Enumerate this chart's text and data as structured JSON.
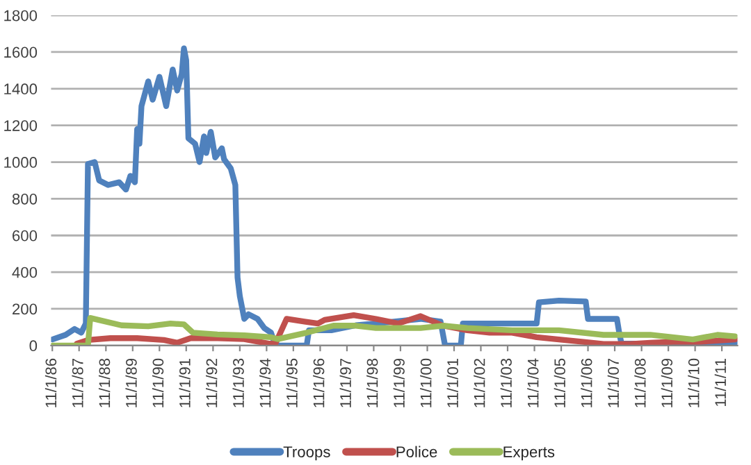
{
  "chart_data": {
    "type": "line",
    "series": [
      {
        "name": "Troops",
        "color": "#4f81bd",
        "x": [
          "1986-11",
          "1987-05",
          "1987-09",
          "1987-12",
          "1988-02",
          "1988-03",
          "1988-06",
          "1988-08",
          "1988-12",
          "1989-05",
          "1989-08",
          "1989-10",
          "1989-12",
          "1990-01",
          "1990-02",
          "1990-03",
          "1990-06",
          "1990-08",
          "1990-11",
          "1991-02",
          "1991-05",
          "1991-07",
          "1991-09",
          "1991-10",
          "1991-11",
          "1991-12",
          "1992-03",
          "1992-05",
          "1992-07",
          "1992-08",
          "1992-10",
          "1992-12",
          "1993-03",
          "1993-04",
          "1993-07",
          "1993-09",
          "1993-10",
          "1993-11",
          "1994-01",
          "1994-03",
          "1994-07",
          "1994-10",
          "1995-01",
          "1995-03",
          "1996-05",
          "1996-06",
          "1997-04",
          "1998-03",
          "1998-12",
          "2000-08",
          "2001-05",
          "2001-07",
          "2002-02",
          "2002-03",
          "2004-12",
          "2005-01",
          "2005-10",
          "2006-10",
          "2006-11",
          "2007-12",
          "2008-01",
          "2008-02",
          "2010-01",
          "2012-05"
        ],
        "values": [
          33,
          58,
          90,
          70,
          120,
          990,
          1000,
          900,
          875,
          890,
          850,
          925,
          890,
          1180,
          1100,
          1305,
          1440,
          1340,
          1465,
          1305,
          1505,
          1390,
          1480,
          1620,
          1555,
          1130,
          1100,
          1000,
          1140,
          1050,
          1165,
          1025,
          1075,
          1015,
          965,
          875,
          370,
          270,
          145,
          170,
          145,
          95,
          70,
          0,
          0,
          83,
          83,
          110,
          120,
          145,
          130,
          0,
          0,
          120,
          120,
          235,
          245,
          240,
          145,
          145,
          70,
          10,
          10,
          15
        ]
      },
      {
        "name": "Police",
        "color": "#c0504d",
        "x": [
          "1987-10",
          "1988-03",
          "1989-01",
          "1990-01",
          "1991-01",
          "1991-07",
          "1992-01",
          "1993-01",
          "1994-01",
          "1994-12",
          "1995-03",
          "1995-08",
          "1996-04",
          "1996-10",
          "1997-01",
          "1998-02",
          "1998-12",
          "1999-10",
          "2000-08",
          "2001-06",
          "2002-05",
          "2003-03",
          "2004-01",
          "2004-12",
          "2005-10",
          "2006-09",
          "2007-06",
          "2008-06",
          "2009-03",
          "2010-01",
          "2011-01",
          "2012-05"
        ],
        "values": [
          10,
          30,
          40,
          40,
          30,
          15,
          40,
          40,
          35,
          10,
          10,
          145,
          130,
          120,
          140,
          165,
          145,
          120,
          160,
          108,
          83,
          70,
          70,
          45,
          33,
          20,
          8,
          8,
          15,
          20,
          20,
          33
        ]
      },
      {
        "name": "Experts",
        "color": "#9bbb59",
        "x": [
          "1986-11",
          "1988-03",
          "1988-04",
          "1989-06",
          "1990-06",
          "1991-04",
          "1991-10",
          "1992-02",
          "1993-01",
          "1994-01",
          "1995-01",
          "1995-04",
          "1996-05",
          "1997-05",
          "1998-03",
          "1998-12",
          "2000-08",
          "2001-06",
          "2002-05",
          "2004-01",
          "2005-10",
          "2007-06",
          "2009-03",
          "2010-10",
          "2011-09",
          "2012-05"
        ],
        "values": [
          0,
          0,
          150,
          110,
          105,
          120,
          115,
          70,
          60,
          55,
          45,
          35,
          70,
          108,
          108,
          95,
          95,
          108,
          95,
          83,
          83,
          58,
          58,
          33,
          58,
          50
        ]
      }
    ],
    "ylim": [
      0,
      1800
    ],
    "yticks": [
      0,
      200,
      400,
      600,
      800,
      1000,
      1200,
      1400,
      1600,
      1800
    ],
    "xlim": [
      "1986-10-15",
      "2012-06-01"
    ],
    "xticks": [
      {
        "value": "1986-11-01",
        "label": "11/1/86"
      },
      {
        "value": "1987-11-01",
        "label": "11/1/87"
      },
      {
        "value": "1988-11-01",
        "label": "11/1/88"
      },
      {
        "value": "1989-11-01",
        "label": "11/1/89"
      },
      {
        "value": "1990-11-01",
        "label": "11/1/90"
      },
      {
        "value": "1991-11-01",
        "label": "11/1/91"
      },
      {
        "value": "1992-11-01",
        "label": "11/1/92"
      },
      {
        "value": "1993-11-01",
        "label": "11/1/93"
      },
      {
        "value": "1994-11-01",
        "label": "11/1/94"
      },
      {
        "value": "1995-11-01",
        "label": "11/1/95"
      },
      {
        "value": "1996-11-01",
        "label": "11/1/96"
      },
      {
        "value": "1997-11-01",
        "label": "11/1/97"
      },
      {
        "value": "1998-11-01",
        "label": "11/1/98"
      },
      {
        "value": "1999-11-01",
        "label": "11/1/99"
      },
      {
        "value": "2000-11-01",
        "label": "11/1/00"
      },
      {
        "value": "2001-11-01",
        "label": "11/1/01"
      },
      {
        "value": "2002-11-01",
        "label": "11/1/02"
      },
      {
        "value": "2003-11-01",
        "label": "11/1/03"
      },
      {
        "value": "2004-11-01",
        "label": "11/1/04"
      },
      {
        "value": "2005-11-01",
        "label": "11/1/05"
      },
      {
        "value": "2006-11-01",
        "label": "11/1/06"
      },
      {
        "value": "2007-11-01",
        "label": "11/1/07"
      },
      {
        "value": "2008-11-01",
        "label": "11/1/08"
      },
      {
        "value": "2009-11-01",
        "label": "11/1/09"
      },
      {
        "value": "2010-11-01",
        "label": "11/1/10"
      },
      {
        "value": "2011-11-01",
        "label": "11/1/11"
      }
    ],
    "grid": "y",
    "legend": "bottom",
    "marker": "none",
    "line_style": "solid"
  }
}
